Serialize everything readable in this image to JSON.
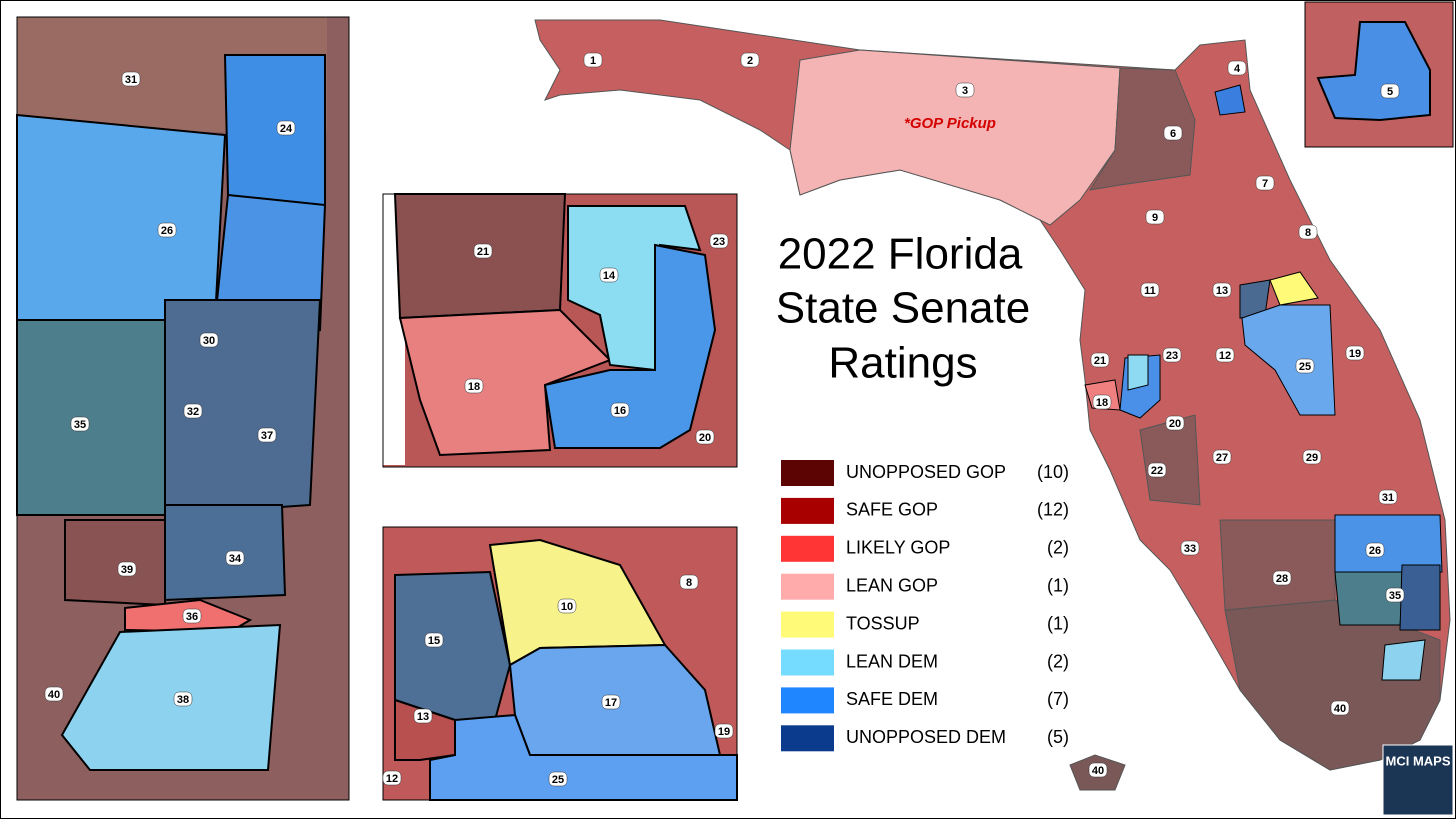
{
  "title": [
    "2022 Florida",
    "State Senate",
    "Ratings"
  ],
  "annotation": "*GOP Pickup",
  "logo": "MCI MAPS",
  "legend": [
    {
      "label": "UNOPPOSED GOP",
      "count": "(10)",
      "color": "#5c0303"
    },
    {
      "label": "SAFE GOP",
      "count": "(12)",
      "color": "#a80000"
    },
    {
      "label": "LIKELY GOP",
      "count": "(2)",
      "color": "#ff3535"
    },
    {
      "label": "LEAN GOP",
      "count": "(1)",
      "color": "#ffabab"
    },
    {
      "label": "TOSSUP",
      "count": "(1)",
      "color": "#fffa78"
    },
    {
      "label": "LEAN DEM",
      "count": "(2)",
      "color": "#76dcff"
    },
    {
      "label": "SAFE DEM",
      "count": "(7)",
      "color": "#1f86ff"
    },
    {
      "label": "UNOPPOSED DEM",
      "count": "(5)",
      "color": "#0b3b8c"
    }
  ],
  "panels": {
    "main": {
      "labels": [
        "1",
        "2",
        "3",
        "4",
        "6",
        "7",
        "8",
        "9",
        "11",
        "13",
        "12",
        "19",
        "21",
        "23",
        "25",
        "18",
        "20",
        "22",
        "27",
        "29",
        "31",
        "26",
        "33",
        "28",
        "35",
        "40",
        "40"
      ]
    },
    "south": {
      "labels": [
        "31",
        "24",
        "26",
        "30",
        "32",
        "35",
        "37",
        "34",
        "39",
        "36",
        "40",
        "38"
      ]
    },
    "tampa": {
      "labels": [
        "21",
        "14",
        "23",
        "18",
        "16",
        "20"
      ]
    },
    "orlando": {
      "labels": [
        "10",
        "8",
        "15",
        "13",
        "17",
        "19",
        "12",
        "25"
      ]
    },
    "jacksonville": {
      "labels": [
        "5"
      ]
    }
  }
}
